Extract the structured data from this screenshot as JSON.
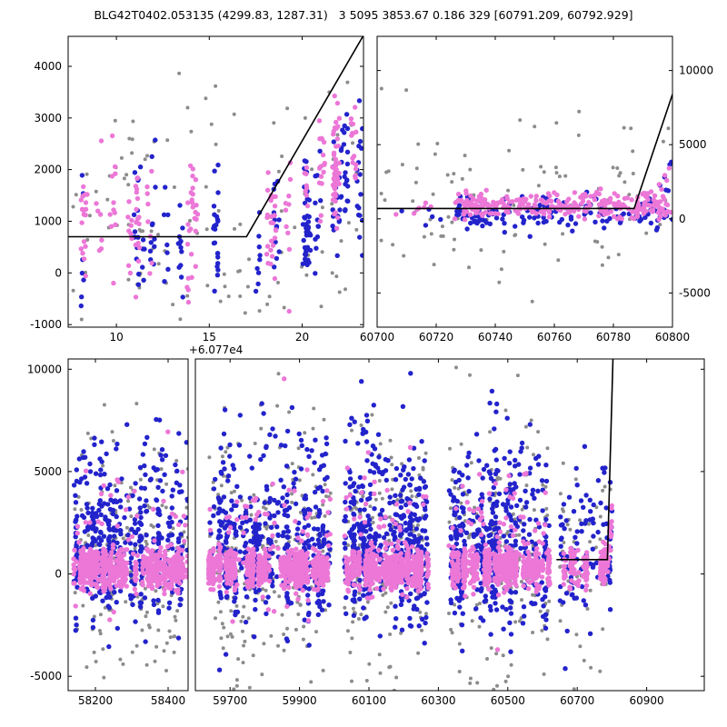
{
  "title": "BLG42T0402.053135 (4299.83, 1287.31)   3 5095 3853.67 0.186 329 [60791.209, 60792.929]",
  "colors": {
    "pink": "#ec77d7",
    "blue": "#2323cc",
    "gray": "#8c8c8c",
    "line": "#000000"
  },
  "chart_data": [
    {
      "type": "scatter",
      "name": "panel-zoom-recent",
      "ylim": [
        -1050,
        4580
      ],
      "yticks": [
        -1000,
        0,
        1000,
        2000,
        3000,
        4000
      ],
      "ytick_side": "left",
      "x_offset_label": "+6.077e4",
      "segments": [
        {
          "xlim": [
            7.4,
            23.3
          ],
          "xticks": [
            10,
            15,
            20
          ]
        }
      ],
      "model_line": [
        [
          7.4,
          700
        ],
        [
          17.0,
          700
        ],
        [
          23.3,
          4600
        ]
      ],
      "series": [
        {
          "name": "gray",
          "r": 2.0,
          "blobs": [
            {
              "n": 120,
              "x": [
                7.5,
                23.2
              ],
              "mean": 900,
              "sigma": 1400
            }
          ]
        },
        {
          "name": "blue",
          "r": 2.7,
          "blobs": [
            {
              "n": 115,
              "x": [
                7.9,
                20.3
              ],
              "cols": 11,
              "jx": 0.15,
              "mean": 700,
              "sigma": 700
            },
            {
              "n": 100,
              "x": [
                20.0,
                23.2
              ],
              "cols": 7,
              "jx": 0.15,
              "mean": -350,
              "sigma": 450,
              "trend": {
                "x0": 17.0,
                "k": 480
              }
            }
          ]
        },
        {
          "name": "pink",
          "r": 2.7,
          "blobs": [
            {
              "n": 135,
              "x": [
                7.7,
                20.3
              ],
              "cols": 12,
              "jx": 0.15,
              "mean": 1100,
              "sigma": 650
            },
            {
              "n": 90,
              "x": [
                20.0,
                23.2
              ],
              "cols": 6,
              "jx": 0.15,
              "mean": 200,
              "sigma": 500,
              "trend": {
                "x0": 17.0,
                "k": 520
              }
            }
          ]
        }
      ]
    },
    {
      "type": "scatter",
      "name": "panel-zoom-wide",
      "ylim": [
        -7300,
        12300
      ],
      "yticks": [
        -5000,
        0,
        5000,
        10000
      ],
      "ytick_side": "right",
      "segments": [
        {
          "xlim": [
            60700,
            60800
          ],
          "xticks": [
            60700,
            60720,
            60740,
            60760,
            60780,
            60800
          ]
        }
      ],
      "model_line": [
        [
          60700,
          700
        ],
        [
          60787,
          700
        ],
        [
          60800,
          8400
        ]
      ],
      "series": [
        {
          "name": "gray",
          "r": 2.0,
          "blobs": [
            {
              "n": 100,
              "x": [
                60701,
                60799
              ],
              "mean": 1100,
              "sigma": 3100
            }
          ]
        },
        {
          "name": "blue",
          "r": 2.7,
          "blobs": [
            {
              "n": 150,
              "x": [
                60727,
                60800
              ],
              "mean": 280,
              "sigma": 550
            },
            {
              "n": 16,
              "x": [
                60788,
                60800
              ],
              "mean": -100,
              "sigma": 250,
              "trend": {
                "x0": 60786,
                "k": 300
              }
            },
            {
              "n": 5,
              "x": [
                60706,
                60724
              ],
              "mean": 300,
              "sigma": 350
            }
          ]
        },
        {
          "name": "pink",
          "r": 2.7,
          "blobs": [
            {
              "n": 265,
              "x": [
                60726,
                60800
              ],
              "mean": 850,
              "sigma": 430
            },
            {
              "n": 28,
              "x": [
                60786,
                60799
              ],
              "mean": 250,
              "sigma": 280,
              "trend": {
                "x0": 60786,
                "k": 270
              }
            },
            {
              "n": 7,
              "x": [
                60705,
                60723
              ],
              "mean": 650,
              "sigma": 320
            }
          ]
        }
      ]
    },
    {
      "type": "scatter",
      "name": "panel-full-lightcurve",
      "ylim": [
        -5700,
        10500
      ],
      "yticks": [
        -5000,
        0,
        5000,
        10000
      ],
      "ytick_side": "left",
      "segments": [
        {
          "xlim": [
            58125,
            58455
          ],
          "xticks": [
            58200,
            58400
          ]
        },
        {
          "xlim": [
            59600,
            61066
          ],
          "xticks": [
            59700,
            59900,
            60100,
            60300,
            60500,
            60700,
            60900
          ]
        }
      ],
      "model_line": [
        [
          60640,
          700
        ],
        [
          60787,
          700
        ],
        [
          60803,
          10500
        ]
      ],
      "series": [
        {
          "name": "gray",
          "r": 2.0,
          "blobs": [
            {
              "n": 190,
              "x": [
                58140,
                58455
              ],
              "mean": 900,
              "sigma": 3100
            },
            {
              "n": 210,
              "x": [
                59640,
                59990
              ],
              "mean": 1000,
              "sigma": 3200
            },
            {
              "n": 180,
              "x": [
                60030,
                60270
              ],
              "mean": 900,
              "sigma": 3100
            },
            {
              "n": 185,
              "x": [
                60330,
                60620
              ],
              "mean": 950,
              "sigma": 3100
            },
            {
              "n": 55,
              "x": [
                60650,
                60800
              ],
              "mean": 800,
              "sigma": 2800
            }
          ]
        },
        {
          "name": "blue",
          "r": 2.7,
          "blobs": [
            {
              "n": 300,
              "x": [
                58140,
                58455
              ],
              "cols": 42,
              "jx": 2.5,
              "mean": 700,
              "sigma": 1500
            },
            {
              "n": 140,
              "x": [
                58140,
                58455
              ],
              "mean": 3200,
              "sigma": 2200
            },
            {
              "n": 330,
              "x": [
                59640,
                59990
              ],
              "cols": 45,
              "jx": 2.5,
              "mean": 700,
              "sigma": 1500
            },
            {
              "n": 160,
              "x": [
                59640,
                59990
              ],
              "mean": 3400,
              "sigma": 2300
            },
            {
              "n": 300,
              "x": [
                60030,
                60270
              ],
              "cols": 40,
              "jx": 2.5,
              "mean": 800,
              "sigma": 1600
            },
            {
              "n": 150,
              "x": [
                60030,
                60270
              ],
              "mean": 3400,
              "sigma": 2300
            },
            {
              "n": 310,
              "x": [
                60330,
                60620
              ],
              "cols": 42,
              "jx": 2.5,
              "mean": 800,
              "sigma": 1600
            },
            {
              "n": 150,
              "x": [
                60330,
                60620
              ],
              "mean": 3300,
              "sigma": 2300
            },
            {
              "n": 80,
              "x": [
                60650,
                60795
              ],
              "cols": 16,
              "jx": 1.5,
              "mean": 600,
              "sigma": 1300
            },
            {
              "n": 28,
              "x": [
                60650,
                60795
              ],
              "mean": 2800,
              "sigma": 1800
            },
            {
              "n": 9,
              "x": [
                60788,
                60801
              ],
              "mean": 0,
              "sigma": 250,
              "trend": {
                "x0": 60786,
                "k": 280
              }
            }
          ]
        },
        {
          "name": "pink",
          "r": 2.7,
          "blobs": [
            {
              "n": 700,
              "x": [
                58140,
                58455
              ],
              "cols": 50,
              "jx": 2.5,
              "mean": 250,
              "sigma": 430
            },
            {
              "n": 60,
              "x": [
                58140,
                58455
              ],
              "mean": 1800,
              "sigma": 1700
            },
            {
              "n": 760,
              "x": [
                59640,
                59990
              ],
              "cols": 50,
              "jx": 2.5,
              "mean": 250,
              "sigma": 430
            },
            {
              "n": 70,
              "x": [
                59640,
                59990
              ],
              "mean": 2000,
              "sigma": 1900
            },
            {
              "n": 680,
              "x": [
                60030,
                60270
              ],
              "cols": 45,
              "jx": 2.5,
              "mean": 260,
              "sigma": 440
            },
            {
              "n": 60,
              "x": [
                60030,
                60270
              ],
              "mean": 2000,
              "sigma": 1800
            },
            {
              "n": 700,
              "x": [
                60330,
                60620
              ],
              "cols": 48,
              "jx": 2.5,
              "mean": 280,
              "sigma": 450
            },
            {
              "n": 60,
              "x": [
                60330,
                60620
              ],
              "mean": 2000,
              "sigma": 1800
            },
            {
              "n": 150,
              "x": [
                60655,
                60795
              ],
              "cols": 18,
              "jx": 1.5,
              "mean": 350,
              "sigma": 520
            },
            {
              "n": 20,
              "x": [
                60786,
                60800
              ],
              "mean": 200,
              "sigma": 260,
              "trend": {
                "x0": 60786,
                "k": 240
              }
            }
          ]
        }
      ]
    }
  ]
}
